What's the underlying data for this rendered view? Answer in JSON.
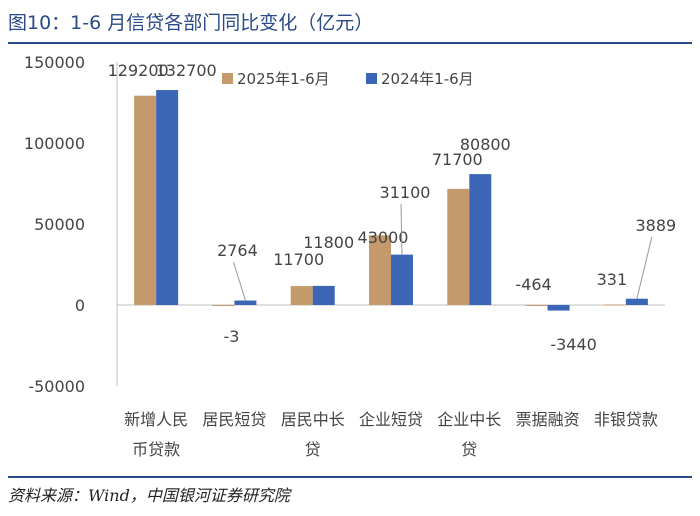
{
  "figure": {
    "title": "图10：1-6 月信贷各部门同比变化（亿元）",
    "source": "资料来源：Wind，中国银河证券研究院"
  },
  "colors": {
    "series_2025": "#c49a6c",
    "series_2024": "#3b66b5",
    "title": "#2b4a8a"
  },
  "chart_data": {
    "type": "bar",
    "categories": [
      [
        "新增人民",
        "币贷款"
      ],
      [
        "居民短贷"
      ],
      [
        "居民中长",
        "贷"
      ],
      [
        "企业短贷"
      ],
      [
        "企业中长",
        "贷"
      ],
      [
        "票据融资"
      ],
      [
        "非银贷款"
      ]
    ],
    "series": [
      {
        "name": "2025年1-6月",
        "values": [
          129200,
          -3,
          11700,
          43000,
          71700,
          -464,
          331
        ]
      },
      {
        "name": "2024年1-6月",
        "values": [
          132700,
          2764,
          11800,
          31100,
          80800,
          -3440,
          3889
        ]
      }
    ],
    "data_labels": [
      [
        "129200",
        "-3",
        "11700",
        "43000",
        "71700",
        "-464",
        "331"
      ],
      [
        "132700",
        "2764",
        "11800",
        "31100",
        "80800",
        "-3440",
        "3889"
      ]
    ],
    "ylim": [
      -50000,
      150000
    ],
    "yticks": [
      -50000,
      0,
      50000,
      100000,
      150000
    ],
    "ytick_labels": [
      "-50000",
      "0",
      "50000",
      "100000",
      "150000"
    ],
    "legend_position": "top-right",
    "grid": false
  }
}
